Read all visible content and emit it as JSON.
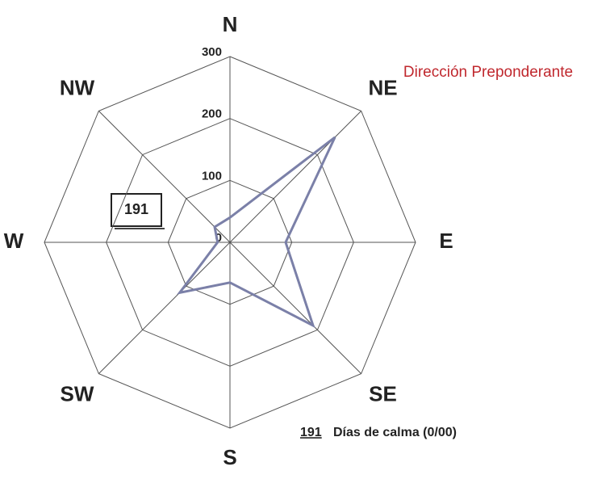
{
  "chart_data": {
    "type": "radar",
    "categories": [
      "N",
      "NE",
      "E",
      "SE",
      "S",
      "SW",
      "W",
      "NW"
    ],
    "series": [
      {
        "color": "#7b80a8",
        "values": [
          40,
          240,
          90,
          190,
          65,
          115,
          20,
          35
        ]
      }
    ],
    "ylim": [
      0,
      300
    ],
    "yticks": [
      0,
      100,
      200,
      300
    ],
    "grid": true,
    "annotation": "Dirección Preponderante",
    "calm_days": 191,
    "calm_label": "Días de calma (0/00)"
  }
}
